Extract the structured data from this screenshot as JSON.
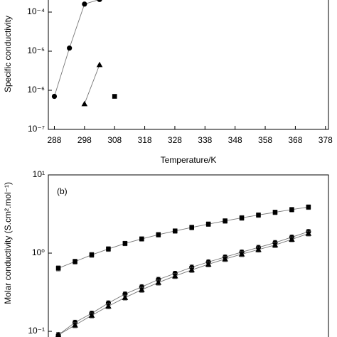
{
  "chart_data": [
    {
      "type": "line",
      "y_axis_label": "Specific conductivity",
      "x_axis_label": "Temperature/K",
      "log_y": true,
      "xlim": [
        286,
        379
      ],
      "xticks": [
        288,
        298,
        308,
        318,
        328,
        338,
        348,
        358,
        368,
        378
      ],
      "ylim": [
        1e-07,
        0.001
      ],
      "yticks": [
        {
          "value": 1e-07,
          "label": "10⁻⁷"
        },
        {
          "value": 1e-06,
          "label": "10⁻⁶"
        },
        {
          "value": 1e-05,
          "label": "10⁻⁵"
        },
        {
          "value": 0.0001,
          "label": "10⁻⁴"
        }
      ],
      "series": [
        {
          "marker": "circle",
          "color": "#000000",
          "x": [
            288,
            293,
            298,
            303
          ],
          "values": [
            7e-07,
            1.2e-05,
            0.00016,
            0.00021
          ]
        },
        {
          "marker": "triangle",
          "color": "#000000",
          "x": [
            298,
            303
          ],
          "values": [
            4.5e-07,
            4.5e-06
          ]
        },
        {
          "marker": "square",
          "color": "#000000",
          "x": [
            308
          ],
          "values": [
            7e-07
          ]
        }
      ]
    },
    {
      "type": "line",
      "panel_label": "(b)",
      "y_axis_label": "Molar conductivity (S.cm².mol⁻¹)",
      "log_y": true,
      "xlim": [
        285,
        369
      ],
      "ylim": [
        0.08,
        10
      ],
      "yticks": [
        {
          "value": 0.1,
          "label": "10⁻¹"
        },
        {
          "value": 1,
          "label": "10⁰"
        },
        {
          "value": 10,
          "label": "10¹"
        }
      ],
      "series": [
        {
          "marker": "square",
          "color": "#000000",
          "x": [
            288,
            293,
            298,
            303,
            308,
            313,
            318,
            323,
            328,
            333,
            338,
            343,
            348,
            353,
            358,
            363
          ],
          "values": [
            0.64,
            0.78,
            0.95,
            1.13,
            1.33,
            1.52,
            1.72,
            1.92,
            2.13,
            2.35,
            2.58,
            2.82,
            3.07,
            3.33,
            3.6,
            3.88
          ],
          "errors": [
            0.05,
            0.06,
            0.07,
            0.08,
            0.09,
            0.1,
            0.12,
            0.13,
            0.15,
            0.16,
            0.18,
            0.2,
            0.21,
            0.23,
            0.25,
            0.27
          ]
        },
        {
          "marker": "circle",
          "color": "#000000",
          "x": [
            288,
            293,
            298,
            303,
            308,
            313,
            318,
            323,
            328,
            333,
            338,
            343,
            348,
            353,
            358,
            363
          ],
          "values": [
            0.09,
            0.13,
            0.17,
            0.23,
            0.3,
            0.37,
            0.46,
            0.55,
            0.66,
            0.77,
            0.89,
            1.03,
            1.18,
            1.36,
            1.6,
            1.88
          ],
          "errors": [
            0.007,
            0.009,
            0.012,
            0.016,
            0.02,
            0.026,
            0.032,
            0.038,
            0.046,
            0.054,
            0.062,
            0.072,
            0.083,
            0.095,
            0.11,
            0.13
          ]
        },
        {
          "marker": "triangle",
          "color": "#000000",
          "x": [
            288,
            293,
            298,
            303,
            308,
            313,
            318,
            323,
            328,
            333,
            338,
            343,
            348,
            353,
            358,
            363
          ],
          "values": [
            0.09,
            0.12,
            0.16,
            0.21,
            0.27,
            0.34,
            0.42,
            0.51,
            0.61,
            0.72,
            0.84,
            0.97,
            1.11,
            1.27,
            1.5,
            1.78
          ],
          "errors": [
            0.007,
            0.009,
            0.012,
            0.016,
            0.02,
            0.026,
            0.032,
            0.038,
            0.046,
            0.054,
            0.062,
            0.072,
            0.083,
            0.095,
            0.11,
            0.13
          ]
        }
      ]
    }
  ]
}
